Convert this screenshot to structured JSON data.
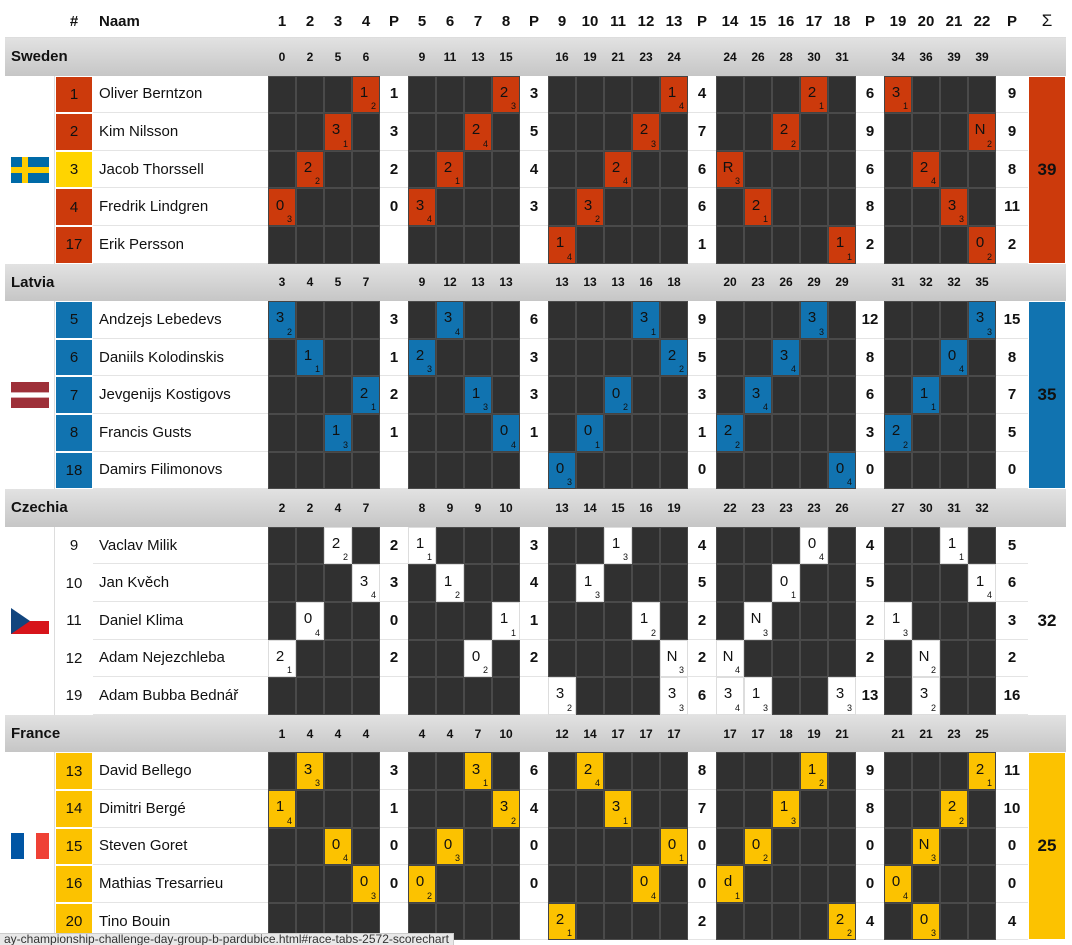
{
  "header": {
    "number": "#",
    "name": "Naam",
    "heats": [
      1,
      2,
      3,
      4,
      5,
      6,
      7,
      8,
      9,
      10,
      11,
      12,
      13,
      14,
      15,
      16,
      17,
      18,
      19,
      20,
      21,
      22
    ],
    "points": "P",
    "sum": "Σ"
  },
  "groups": [
    4,
    4,
    5,
    5,
    4
  ],
  "teams": [
    {
      "name": "Sweden",
      "flag": "se",
      "color": "#cc3a0c",
      "totals": [
        0,
        2,
        5,
        6,
        9,
        11,
        13,
        15,
        16,
        19,
        21,
        23,
        24,
        24,
        26,
        28,
        30,
        31,
        34,
        36,
        39,
        39
      ],
      "sum": 39,
      "riders": [
        {
          "number": 1,
          "name": "Oliver Berntzon",
          "heats": [
            null,
            null,
            null,
            [
              1,
              2
            ],
            null,
            null,
            null,
            [
              2,
              3
            ],
            null,
            null,
            null,
            null,
            [
              1,
              4
            ],
            null,
            null,
            null,
            [
              2,
              1
            ],
            null,
            [
              3,
              1
            ],
            null,
            null,
            null
          ],
          "points": [
            1,
            3,
            4,
            6,
            9
          ]
        },
        {
          "number": 2,
          "name": "Kim Nilsson",
          "heats": [
            null,
            null,
            [
              3,
              1
            ],
            null,
            null,
            null,
            [
              2,
              4
            ],
            null,
            null,
            null,
            null,
            [
              2,
              3
            ],
            null,
            null,
            null,
            [
              2,
              2
            ],
            null,
            null,
            null,
            null,
            null,
            [
              "N",
              2
            ]
          ],
          "points": [
            3,
            5,
            7,
            9,
            9
          ]
        },
        {
          "number": 3,
          "name": "Jacob Thorssell",
          "number_color": "#ffd400",
          "heats": [
            null,
            [
              2,
              2
            ],
            null,
            null,
            null,
            [
              2,
              1
            ],
            null,
            null,
            null,
            null,
            [
              2,
              4
            ],
            null,
            null,
            [
              "R",
              3
            ],
            null,
            null,
            null,
            null,
            null,
            [
              2,
              4
            ],
            null,
            null
          ],
          "points": [
            2,
            4,
            6,
            6,
            8
          ]
        },
        {
          "number": 4,
          "name": "Fredrik Lindgren",
          "heats": [
            [
              0,
              3
            ],
            null,
            null,
            null,
            [
              3,
              4
            ],
            null,
            null,
            null,
            null,
            [
              3,
              2
            ],
            null,
            null,
            null,
            null,
            [
              2,
              1
            ],
            null,
            null,
            null,
            null,
            null,
            [
              3,
              3
            ],
            null
          ],
          "points": [
            0,
            3,
            6,
            8,
            11
          ]
        },
        {
          "number": 17,
          "name": "Erik Persson",
          "heats": [
            null,
            null,
            null,
            null,
            null,
            null,
            null,
            null,
            [
              1,
              4
            ],
            null,
            null,
            null,
            null,
            null,
            null,
            null,
            null,
            [
              1,
              1
            ],
            null,
            null,
            null,
            [
              0,
              2
            ]
          ],
          "points": [
            null,
            null,
            1,
            2,
            2
          ]
        }
      ]
    },
    {
      "name": "Latvia",
      "flag": "lv",
      "color": "#1173b0",
      "totals": [
        3,
        4,
        5,
        7,
        9,
        12,
        13,
        13,
        13,
        13,
        13,
        16,
        18,
        20,
        23,
        26,
        29,
        29,
        31,
        32,
        32,
        35
      ],
      "sum": 35,
      "riders": [
        {
          "number": 5,
          "name": "Andzejs Lebedevs",
          "heats": [
            [
              3,
              2
            ],
            null,
            null,
            null,
            null,
            [
              3,
              4
            ],
            null,
            null,
            null,
            null,
            null,
            [
              3,
              1
            ],
            null,
            null,
            null,
            null,
            [
              3,
              3
            ],
            null,
            null,
            null,
            null,
            [
              3,
              3
            ]
          ],
          "points": [
            3,
            6,
            9,
            12,
            15
          ]
        },
        {
          "number": 6,
          "name": "Daniils Kolodinskis",
          "heats": [
            null,
            [
              1,
              1
            ],
            null,
            null,
            [
              2,
              3
            ],
            null,
            null,
            null,
            null,
            null,
            null,
            null,
            [
              2,
              2
            ],
            null,
            null,
            [
              3,
              4
            ],
            null,
            null,
            null,
            null,
            [
              0,
              4
            ],
            null
          ],
          "points": [
            1,
            3,
            5,
            8,
            8
          ]
        },
        {
          "number": 7,
          "name": "Jevgenijs Kostigovs",
          "heats": [
            null,
            null,
            null,
            [
              2,
              1
            ],
            null,
            null,
            [
              1,
              3
            ],
            null,
            null,
            null,
            [
              0,
              2
            ],
            null,
            null,
            null,
            [
              3,
              4
            ],
            null,
            null,
            null,
            null,
            [
              1,
              1
            ],
            null,
            null
          ],
          "points": [
            2,
            3,
            3,
            6,
            7
          ]
        },
        {
          "number": 8,
          "name": "Francis Gusts",
          "heats": [
            null,
            null,
            [
              1,
              3
            ],
            null,
            null,
            null,
            null,
            [
              0,
              4
            ],
            null,
            [
              0,
              1
            ],
            null,
            null,
            null,
            [
              2,
              2
            ],
            null,
            null,
            null,
            null,
            [
              2,
              2
            ],
            null,
            null,
            null
          ],
          "points": [
            1,
            1,
            1,
            3,
            5
          ]
        },
        {
          "number": 18,
          "name": "Damirs Filimonovs",
          "heats": [
            null,
            null,
            null,
            null,
            null,
            null,
            null,
            null,
            [
              0,
              3
            ],
            null,
            null,
            null,
            null,
            null,
            null,
            null,
            null,
            [
              0,
              4
            ],
            null,
            null,
            null,
            null
          ],
          "points": [
            null,
            null,
            0,
            0,
            0
          ]
        }
      ]
    },
    {
      "name": "Czechia",
      "flag": "cz",
      "color": "#ffffff",
      "totals": [
        2,
        2,
        4,
        7,
        8,
        9,
        9,
        10,
        13,
        14,
        15,
        16,
        19,
        22,
        23,
        23,
        23,
        26,
        27,
        30,
        31,
        32
      ],
      "sum": 32,
      "riders": [
        {
          "number": 9,
          "name": "Vaclav Milik",
          "heats": [
            null,
            null,
            [
              2,
              2
            ],
            null,
            [
              1,
              1
            ],
            null,
            null,
            null,
            null,
            null,
            [
              1,
              3
            ],
            null,
            null,
            null,
            null,
            null,
            [
              0,
              4
            ],
            null,
            null,
            null,
            [
              1,
              1
            ],
            null
          ],
          "points": [
            2,
            3,
            4,
            4,
            5
          ]
        },
        {
          "number": 10,
          "name": "Jan Kvěch",
          "heats": [
            null,
            null,
            null,
            [
              3,
              4
            ],
            null,
            [
              1,
              2
            ],
            null,
            null,
            null,
            [
              1,
              3
            ],
            null,
            null,
            null,
            null,
            null,
            [
              0,
              1
            ],
            null,
            null,
            null,
            null,
            null,
            [
              1,
              4
            ]
          ],
          "points": [
            3,
            4,
            5,
            5,
            6
          ]
        },
        {
          "number": 11,
          "name": "Daniel Klima",
          "heats": [
            null,
            [
              0,
              4
            ],
            null,
            null,
            null,
            null,
            null,
            [
              1,
              1
            ],
            null,
            null,
            null,
            [
              1,
              2
            ],
            null,
            null,
            [
              "N",
              3
            ],
            null,
            null,
            null,
            [
              1,
              3
            ],
            null,
            null,
            null
          ],
          "points": [
            0,
            1,
            2,
            2,
            3
          ]
        },
        {
          "number": 12,
          "name": "Adam Nejezchleba",
          "heats": [
            [
              2,
              1
            ],
            null,
            null,
            null,
            null,
            null,
            [
              0,
              2
            ],
            null,
            null,
            null,
            null,
            null,
            [
              "N",
              3
            ],
            [
              "N",
              4
            ],
            null,
            null,
            null,
            null,
            null,
            [
              "N",
              2
            ],
            null,
            null
          ],
          "points": [
            2,
            2,
            2,
            2,
            2
          ]
        },
        {
          "number": 19,
          "name": "Adam Bubba Bednář",
          "heats": [
            null,
            null,
            null,
            null,
            null,
            null,
            null,
            null,
            [
              3,
              2
            ],
            null,
            null,
            null,
            [
              3,
              3
            ],
            [
              3,
              4
            ],
            [
              1,
              3
            ],
            null,
            null,
            [
              3,
              3
            ],
            null,
            [
              3,
              2
            ],
            null,
            null
          ],
          "points": [
            null,
            null,
            6,
            13,
            16
          ]
        }
      ]
    },
    {
      "name": "France",
      "flag": "fr",
      "color": "#fcc200",
      "totals": [
        1,
        4,
        4,
        4,
        4,
        4,
        7,
        10,
        12,
        14,
        17,
        17,
        17,
        17,
        17,
        18,
        19,
        21,
        21,
        21,
        23,
        25
      ],
      "sum": 25,
      "riders": [
        {
          "number": 13,
          "name": "David Bellego",
          "heats": [
            null,
            [
              3,
              3
            ],
            null,
            null,
            null,
            null,
            [
              3,
              1
            ],
            null,
            null,
            [
              2,
              4
            ],
            null,
            null,
            null,
            null,
            null,
            null,
            [
              1,
              2
            ],
            null,
            null,
            null,
            null,
            [
              2,
              1
            ]
          ],
          "points": [
            3,
            6,
            8,
            9,
            11
          ]
        },
        {
          "number": 14,
          "name": "Dimitri Bergé",
          "heats": [
            [
              1,
              4
            ],
            null,
            null,
            null,
            null,
            null,
            null,
            [
              3,
              2
            ],
            null,
            null,
            [
              3,
              1
            ],
            null,
            null,
            null,
            null,
            [
              1,
              3
            ],
            null,
            null,
            null,
            null,
            [
              2,
              2
            ],
            null
          ],
          "points": [
            1,
            4,
            7,
            8,
            10
          ]
        },
        {
          "number": 15,
          "name": "Steven Goret",
          "heats": [
            null,
            null,
            [
              0,
              4
            ],
            null,
            null,
            [
              0,
              3
            ],
            null,
            null,
            null,
            null,
            null,
            null,
            [
              0,
              1
            ],
            null,
            [
              0,
              2
            ],
            null,
            null,
            null,
            null,
            [
              "N",
              3
            ],
            null,
            null
          ],
          "points": [
            0,
            0,
            0,
            0,
            0
          ]
        },
        {
          "number": 16,
          "name": "Mathias Tresarrieu",
          "heats": [
            null,
            null,
            null,
            [
              0,
              3
            ],
            [
              0,
              2
            ],
            null,
            null,
            null,
            null,
            null,
            null,
            [
              0,
              4
            ],
            null,
            [
              "d",
              1
            ],
            null,
            null,
            null,
            null,
            [
              0,
              4
            ],
            null,
            null,
            null
          ],
          "points": [
            0,
            0,
            0,
            0,
            0
          ]
        },
        {
          "number": 20,
          "name": "Tino Bouin",
          "heats": [
            null,
            null,
            null,
            null,
            null,
            null,
            null,
            null,
            [
              2,
              1
            ],
            null,
            null,
            null,
            null,
            null,
            null,
            null,
            null,
            [
              2,
              2
            ],
            null,
            [
              0,
              3
            ],
            null,
            null
          ],
          "points": [
            null,
            null,
            2,
            4,
            4
          ]
        }
      ]
    }
  ],
  "status_bar": "ay-championship-challenge-day-group-b-pardubice.html#race-tabs-2572-scorechart"
}
